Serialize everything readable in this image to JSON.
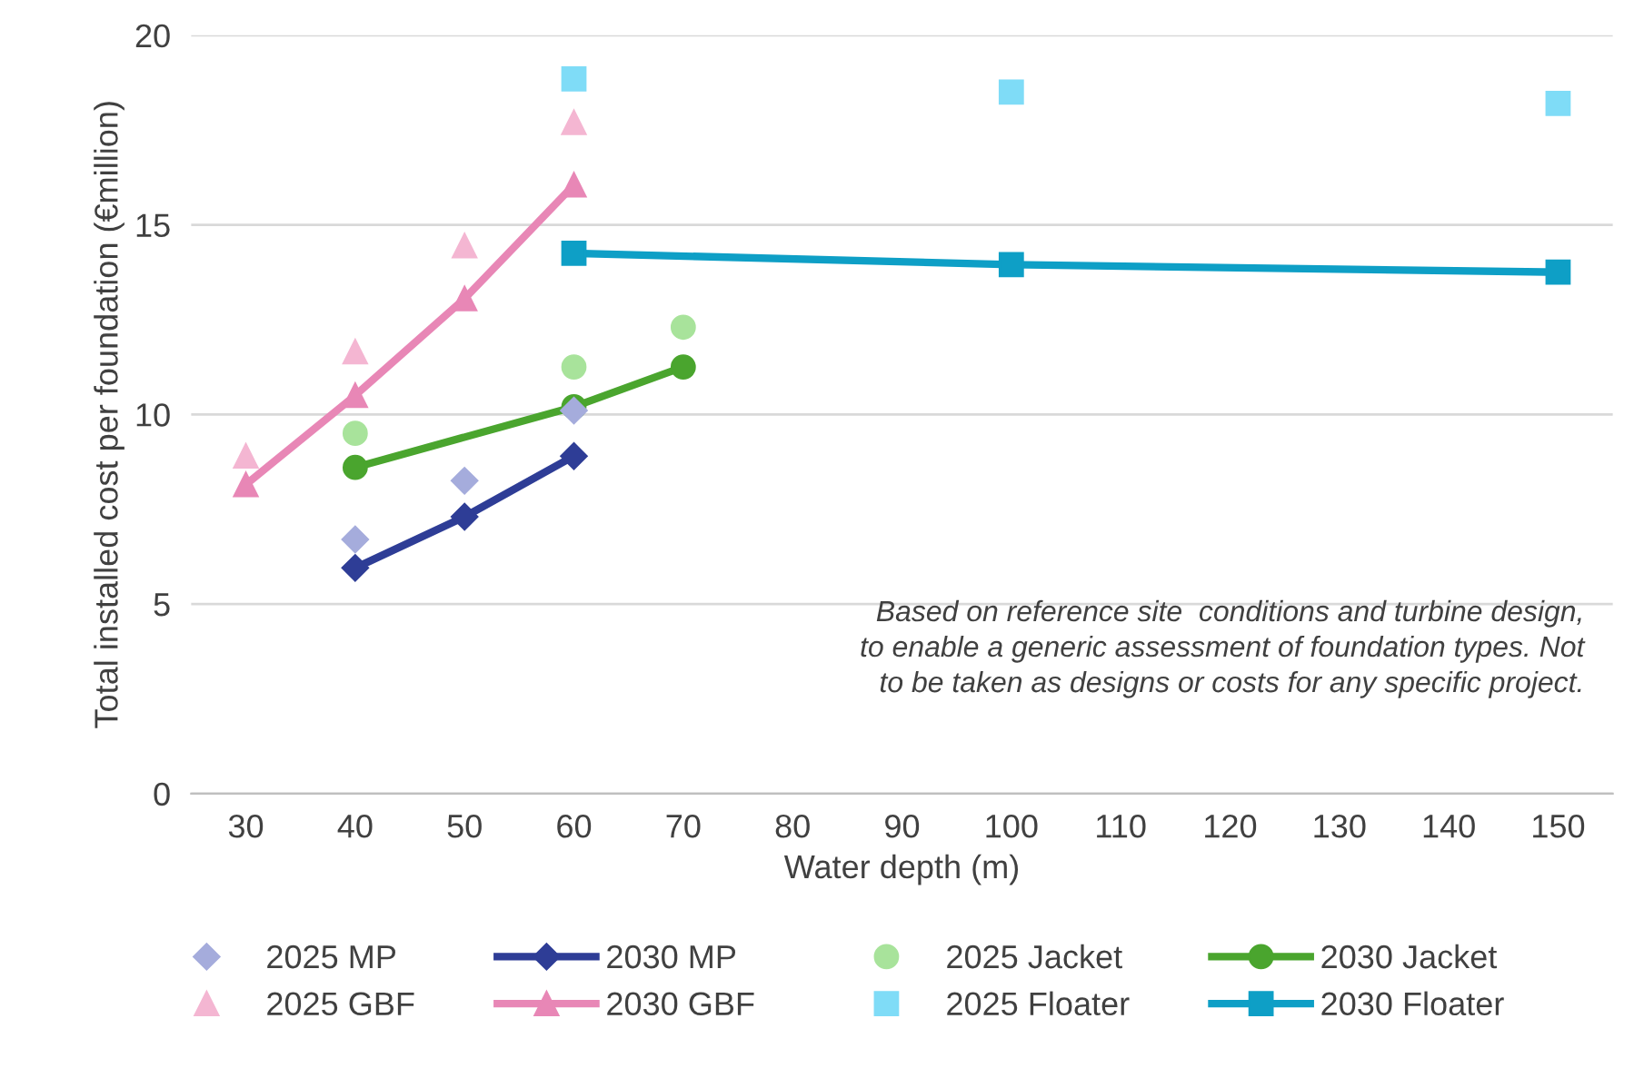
{
  "chart_data": {
    "type": "line",
    "xlabel": "Water depth (m)",
    "ylabel": "Total installed cost per foundation (€million)",
    "categories": [
      "30",
      "40",
      "50",
      "60",
      "70",
      "80",
      "90",
      "100",
      "110",
      "120",
      "130",
      "140",
      "150"
    ],
    "ylim": [
      0,
      20
    ],
    "yticks": [
      0,
      5,
      10,
      15,
      20
    ],
    "grid": "y",
    "legend": "bottom",
    "annotations": [
      "Based on reference site  conditions and turbine design,\nto enable a generic assessment of foundation types. Not\nto be taken as designs or costs for any specific project."
    ],
    "series": [
      {
        "name": "2025 MP",
        "type": "scatter",
        "marker": "diamond",
        "color": "#a5acdc",
        "values": [
          null,
          6.7,
          8.25,
          10.1,
          null,
          null,
          null,
          null,
          null,
          null,
          null,
          null,
          null
        ]
      },
      {
        "name": "2030 MP",
        "type": "line",
        "marker": "diamond",
        "color": "#2e3d96",
        "values": [
          null,
          5.95,
          7.3,
          8.9,
          null,
          null,
          null,
          null,
          null,
          null,
          null,
          null,
          null
        ]
      },
      {
        "name": "2025 Jacket",
        "type": "scatter",
        "marker": "circle",
        "color": "#a8e39b",
        "values": [
          null,
          9.5,
          null,
          11.25,
          12.3,
          null,
          null,
          null,
          null,
          null,
          null,
          null,
          null
        ]
      },
      {
        "name": "2030 Jacket",
        "type": "line",
        "marker": "circle",
        "color": "#4aa52e",
        "values": [
          null,
          8.6,
          null,
          10.2,
          11.25,
          null,
          null,
          null,
          null,
          null,
          null,
          null,
          null
        ]
      },
      {
        "name": "2025 GBF",
        "type": "scatter",
        "marker": "triangle",
        "color": "#f4b6d2",
        "values": [
          8.9,
          11.65,
          14.45,
          17.7,
          null,
          null,
          null,
          null,
          null,
          null,
          null,
          null,
          null
        ]
      },
      {
        "name": "2030 GBF",
        "type": "line",
        "marker": "triangle",
        "color": "#e887b6",
        "values": [
          8.15,
          10.5,
          13.05,
          16.05,
          null,
          null,
          null,
          null,
          null,
          null,
          null,
          null,
          null
        ]
      },
      {
        "name": "2025 Floater",
        "type": "scatter",
        "marker": "square",
        "color": "#7fdcf7",
        "values": [
          null,
          null,
          null,
          18.85,
          null,
          null,
          null,
          18.5,
          null,
          null,
          null,
          null,
          18.2
        ]
      },
      {
        "name": "2030 Floater",
        "type": "line",
        "marker": "square",
        "color": "#0e9fc6",
        "values": [
          null,
          null,
          null,
          14.25,
          null,
          null,
          null,
          13.95,
          null,
          null,
          null,
          null,
          13.75
        ]
      }
    ]
  }
}
